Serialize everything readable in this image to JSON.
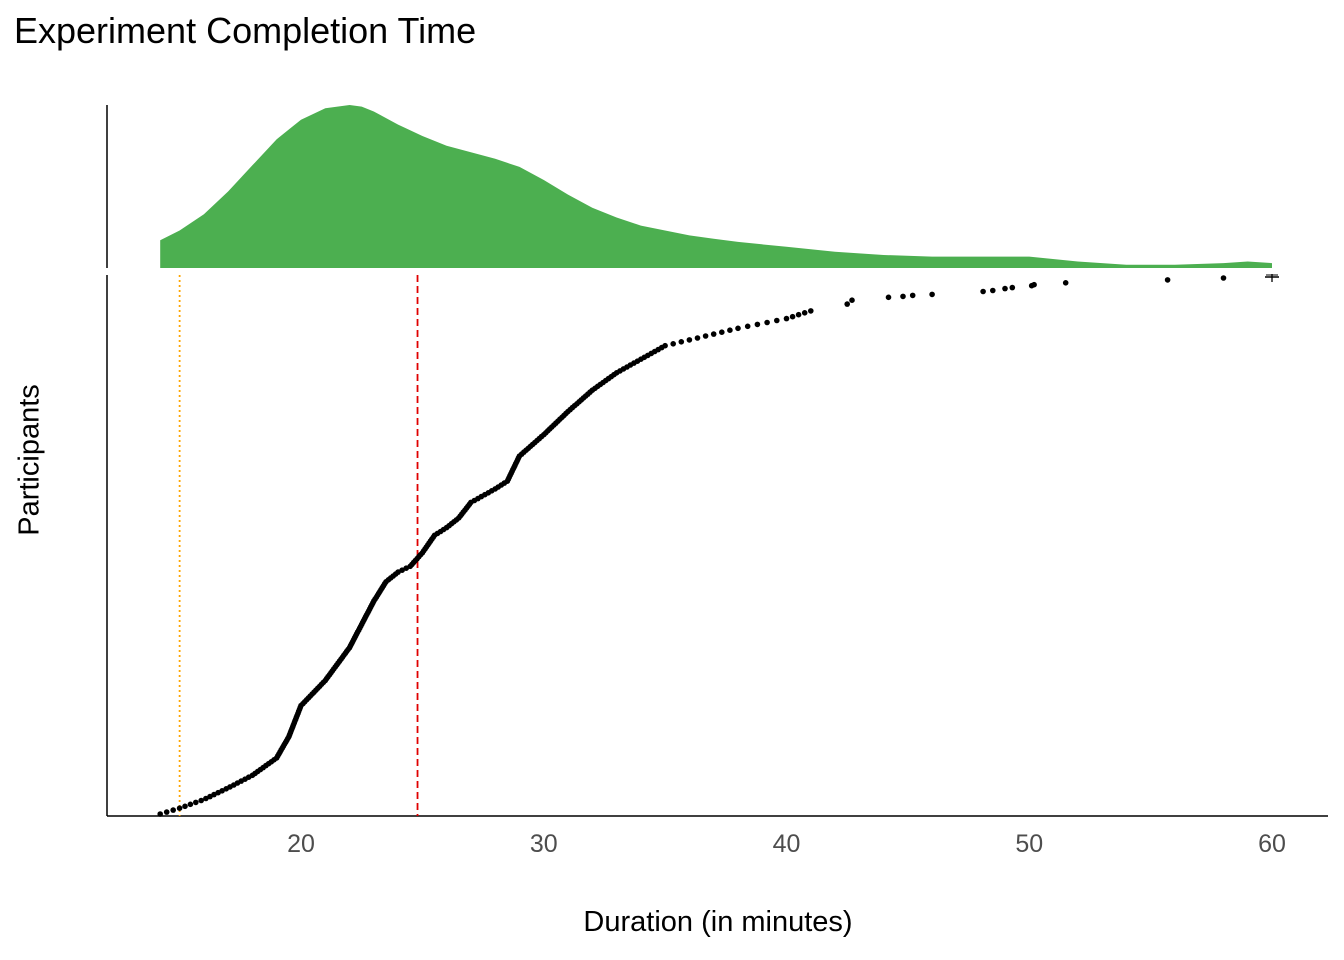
{
  "chart_data": [
    {
      "type": "area",
      "role": "density",
      "x_range": [
        14.2,
        60.0
      ],
      "color": "#4CAF50",
      "density_x": [
        14.2,
        15,
        16,
        17,
        18,
        19,
        20,
        21,
        22,
        22.5,
        23,
        24,
        25,
        26,
        27,
        28,
        29,
        30,
        31,
        32,
        33,
        34,
        35,
        36,
        37,
        38,
        40,
        42,
        44,
        46,
        48,
        50,
        52,
        54,
        56,
        58,
        59,
        60
      ],
      "density_y": [
        0.17,
        0.23,
        0.33,
        0.47,
        0.63,
        0.79,
        0.91,
        0.98,
        1.0,
        0.99,
        0.96,
        0.88,
        0.81,
        0.75,
        0.71,
        0.67,
        0.62,
        0.54,
        0.45,
        0.37,
        0.31,
        0.26,
        0.23,
        0.2,
        0.18,
        0.16,
        0.13,
        0.1,
        0.08,
        0.07,
        0.07,
        0.07,
        0.04,
        0.02,
        0.02,
        0.03,
        0.04,
        0.03
      ]
    },
    {
      "type": "scatter",
      "title": "Experiment Completion Time",
      "xlabel": "Duration (in minutes)",
      "ylabel": "Participants",
      "xlim": [
        12,
        62
      ],
      "xticks": [
        20,
        30,
        40,
        50,
        60
      ],
      "point_color": "#000000",
      "curve_x": [
        14.2,
        15,
        16,
        17,
        18,
        19,
        19.5,
        20,
        21,
        22,
        22.5,
        23,
        23.5,
        24,
        24.5,
        25,
        25.5,
        26,
        26.5,
        27,
        28,
        28.5,
        29,
        30,
        31,
        32,
        33,
        34,
        35,
        36,
        38,
        40,
        41
      ],
      "curve_y": [
        0,
        6,
        15,
        27,
        40,
        58,
        80,
        112,
        138,
        172,
        196,
        220,
        240,
        250,
        256,
        270,
        288,
        296,
        306,
        322,
        336,
        344,
        370,
        392,
        416,
        438,
        456,
        470,
        484,
        490,
        502,
        512,
        520
      ],
      "sparse_x": [
        42.5,
        42.7,
        44.2,
        44.8,
        45.2,
        46.0,
        48.1,
        48.5,
        49.0,
        49.3,
        50.1,
        50.2,
        51.5,
        55.7,
        58.0,
        60.0
      ],
      "sparse_y": [
        527,
        531,
        534,
        535,
        536,
        537,
        540,
        541,
        543,
        544,
        546,
        547,
        549,
        552,
        554,
        555
      ],
      "reference_lines": [
        {
          "x": 15.0,
          "style": "dotted",
          "color": "#FFA500"
        },
        {
          "x": 24.8,
          "style": "dashed",
          "color": "#E00000"
        }
      ],
      "outlier_marker": {
        "x": 60.0,
        "symbol": "cross"
      }
    }
  ]
}
